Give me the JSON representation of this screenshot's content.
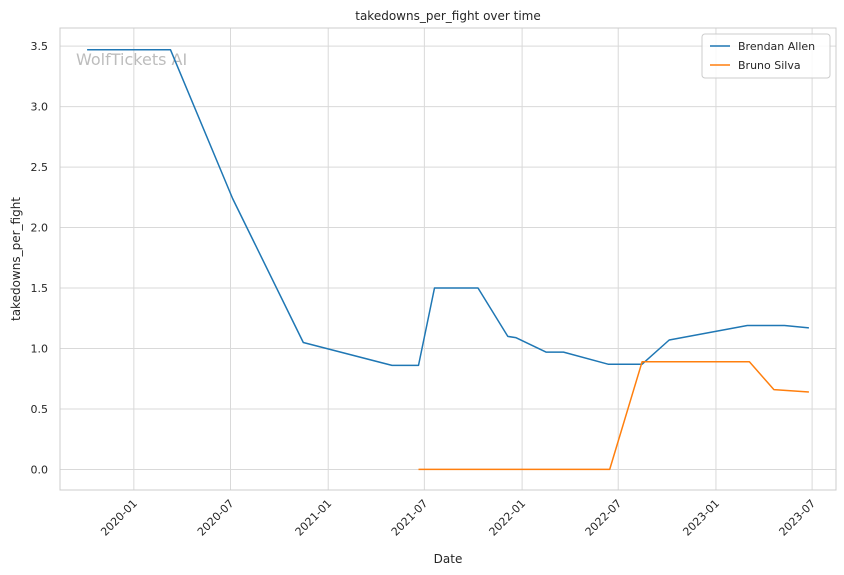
{
  "chart_data": {
    "type": "line",
    "title": "takedowns_per_fight over time",
    "xlabel": "Date",
    "ylabel": "takedowns_per_fight",
    "watermark": "WolfTickets AI",
    "grid": true,
    "legend_position": "top-right",
    "x_ticks": [
      "2020-01",
      "2020-07",
      "2021-01",
      "2021-07",
      "2022-01",
      "2022-07",
      "2023-01",
      "2023-07"
    ],
    "y_ticks": [
      "0.0",
      "0.5",
      "1.0",
      "1.5",
      "2.0",
      "2.5",
      "3.0",
      "3.5"
    ],
    "xlim": [
      "2019-08-15",
      "2023-08-15"
    ],
    "ylim": [
      -0.17,
      3.65
    ],
    "series": [
      {
        "name": "Brendan Allen",
        "color": "#1f77b4",
        "points": [
          [
            "2019-10-05",
            3.47
          ],
          [
            "2020-03-10",
            3.47
          ],
          [
            "2020-07-05",
            2.24
          ],
          [
            "2020-11-15",
            1.05
          ],
          [
            "2021-05-01",
            0.86
          ],
          [
            "2021-06-20",
            0.86
          ],
          [
            "2021-07-20",
            1.5
          ],
          [
            "2021-10-10",
            1.5
          ],
          [
            "2021-12-05",
            1.1
          ],
          [
            "2021-12-20",
            1.09
          ],
          [
            "2022-02-15",
            0.97
          ],
          [
            "2022-03-20",
            0.97
          ],
          [
            "2022-06-12",
            0.87
          ],
          [
            "2022-08-15",
            0.87
          ],
          [
            "2022-10-05",
            1.07
          ],
          [
            "2023-03-01",
            1.19
          ],
          [
            "2023-05-10",
            1.19
          ],
          [
            "2023-06-25",
            1.17
          ]
        ]
      },
      {
        "name": "Bruno Silva",
        "color": "#ff7f0e",
        "points": [
          [
            "2021-06-20",
            0.0
          ],
          [
            "2022-06-15",
            0.0
          ],
          [
            "2022-08-15",
            0.89
          ],
          [
            "2023-03-05",
            0.89
          ],
          [
            "2023-04-20",
            0.66
          ],
          [
            "2023-06-25",
            0.64
          ]
        ]
      }
    ]
  }
}
